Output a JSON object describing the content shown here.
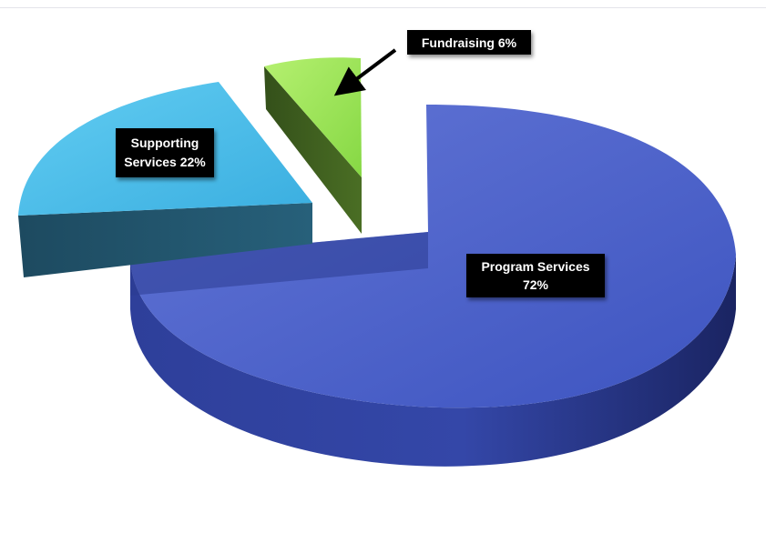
{
  "chart_data": {
    "type": "pie",
    "title": "",
    "slices": [
      {
        "name": "Program Services",
        "value": 72,
        "label_lines": [
          "Program Services",
          "72%"
        ],
        "top_color": "#4a60cc",
        "side_color": "#26357f"
      },
      {
        "name": "Supporting Services",
        "value": 22,
        "label_lines": [
          "Supporting",
          "Services 22%"
        ],
        "top_color": "#55c4ee",
        "side_color": "#1f4d63"
      },
      {
        "name": "Fundraising",
        "value": 6,
        "label_lines": [
          "Fundraising 6%"
        ],
        "top_color": "#9ee65a",
        "side_color": "#3f5a1e"
      }
    ],
    "legend": "none",
    "exploded": true,
    "three_d": true
  }
}
